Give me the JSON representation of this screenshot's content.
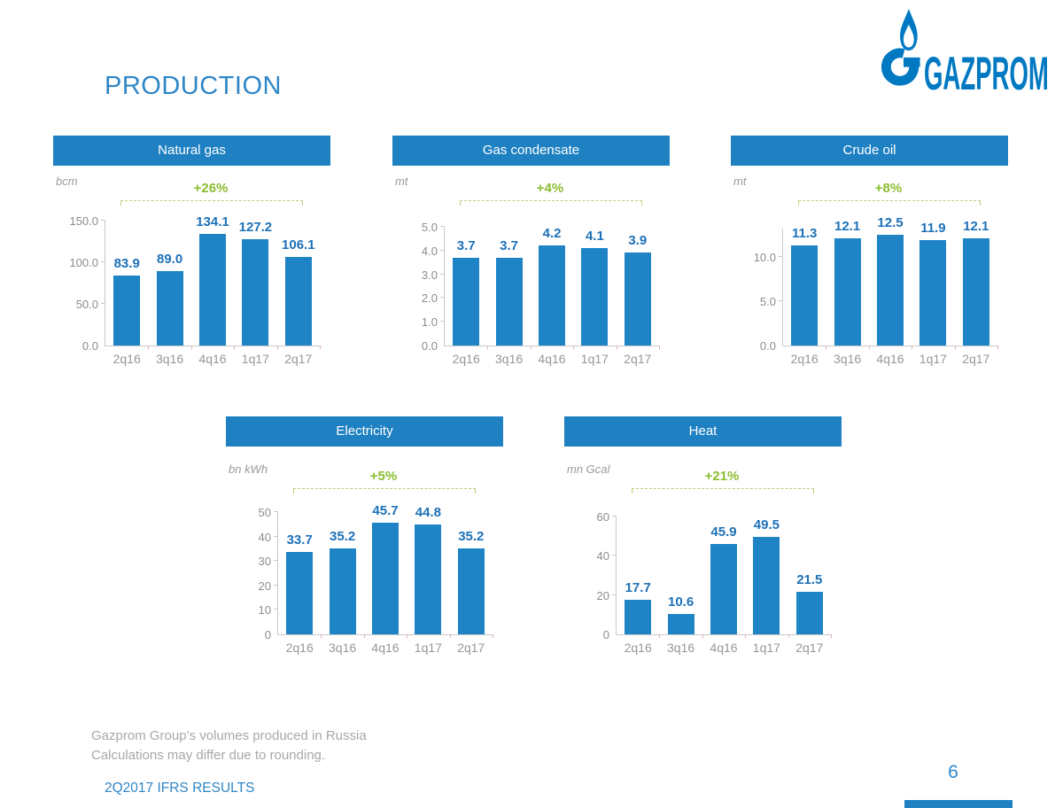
{
  "page": {
    "title": "PRODUCTION",
    "page_number": "6"
  },
  "logo": {
    "text": "GAZPROM",
    "icon": "gazprom-flame-g"
  },
  "footer": {
    "note_line1": "Gazprom Group’s volumes produced in Russia",
    "note_line2": "Calculations may differ due to rounding.",
    "results_label": "2Q2017 IFRS RESULTS"
  },
  "colors": {
    "bar": "#1e84c6",
    "chart_header": "#1f81c2",
    "value_label": "#1d71b8",
    "title_blue": "#2f86c7",
    "growth_green": "#8bbd32",
    "bracket_green": "#bfce7f",
    "logo_blue": "#0079c2",
    "axis_text": "#8c8c8c",
    "note_text": "#a8a8a8"
  },
  "chart_data": [
    {
      "type": "bar",
      "title": "Natural gas",
      "unit": "bcm",
      "change_label": "+26%",
      "categories": [
        "2q16",
        "3q16",
        "4q16",
        "1q17",
        "2q17"
      ],
      "values": [
        83.9,
        89.0,
        134.1,
        127.2,
        106.1
      ],
      "value_labels": [
        "83.9",
        "89.0",
        "134.1",
        "127.2",
        "106.1"
      ],
      "ylim": [
        0,
        150
      ],
      "grid": false,
      "yticks": [
        {
          "v": 0,
          "label": "0.0"
        },
        {
          "v": 50,
          "label": "50.0"
        },
        {
          "v": 100,
          "label": "100.0"
        },
        {
          "v": 150,
          "label": "150.0"
        }
      ]
    },
    {
      "type": "bar",
      "title": "Gas condensate",
      "unit": "mt",
      "change_label": "+4%",
      "categories": [
        "2q16",
        "3q16",
        "4q16",
        "1q17",
        "2q17"
      ],
      "values": [
        3.7,
        3.7,
        4.2,
        4.1,
        3.9
      ],
      "value_labels": [
        "3.7",
        "3.7",
        "4.2",
        "4.1",
        "3.9"
      ],
      "ylim": [
        0,
        5
      ],
      "grid": false,
      "yticks": [
        {
          "v": 0,
          "label": "0.0"
        },
        {
          "v": 1,
          "label": "1.0"
        },
        {
          "v": 2,
          "label": "2.0"
        },
        {
          "v": 3,
          "label": "3.0"
        },
        {
          "v": 4,
          "label": "4.0"
        },
        {
          "v": 5,
          "label": "5.0"
        }
      ]
    },
    {
      "type": "bar",
      "title": "Crude oil",
      "unit": "mt",
      "change_label": "+8%",
      "categories": [
        "2q16",
        "3q16",
        "4q16",
        "1q17",
        "2q17"
      ],
      "values": [
        11.3,
        12.1,
        12.5,
        11.9,
        12.1
      ],
      "value_labels": [
        "11.3",
        "12.1",
        "12.5",
        "11.9",
        "12.1"
      ],
      "ylim": [
        0,
        13.2
      ],
      "grid": false,
      "yticks": [
        {
          "v": 0,
          "label": "0.0"
        },
        {
          "v": 5,
          "label": "5.0"
        },
        {
          "v": 10,
          "label": "10.0"
        }
      ]
    },
    {
      "type": "bar",
      "title": "Electricity",
      "unit": "bn kWh",
      "change_label": "+5%",
      "categories": [
        "2q16",
        "3q16",
        "4q16",
        "1q17",
        "2q17"
      ],
      "values": [
        33.7,
        35.2,
        45.7,
        44.8,
        35.2
      ],
      "value_labels": [
        "33.7",
        "35.2",
        "45.7",
        "44.8",
        "35.2"
      ],
      "ylim": [
        0,
        50
      ],
      "grid": false,
      "yticks": [
        {
          "v": 0,
          "label": "0"
        },
        {
          "v": 10,
          "label": "10"
        },
        {
          "v": 20,
          "label": "20"
        },
        {
          "v": 30,
          "label": "30"
        },
        {
          "v": 40,
          "label": "40"
        },
        {
          "v": 50,
          "label": "50"
        }
      ]
    },
    {
      "type": "bar",
      "title": "Heat",
      "unit": "mn Gcal",
      "change_label": "+21%",
      "categories": [
        "2q16",
        "3q16",
        "4q16",
        "1q17",
        "2q17"
      ],
      "values": [
        17.7,
        10.6,
        45.9,
        49.5,
        21.5
      ],
      "value_labels": [
        "17.7",
        "10.6",
        "45.9",
        "49.5",
        "21.5"
      ],
      "ylim": [
        0,
        60
      ],
      "grid": false,
      "yticks": [
        {
          "v": 0,
          "label": "0"
        },
        {
          "v": 20,
          "label": "20"
        },
        {
          "v": 40,
          "label": "40"
        },
        {
          "v": 60,
          "label": "60"
        }
      ]
    }
  ]
}
